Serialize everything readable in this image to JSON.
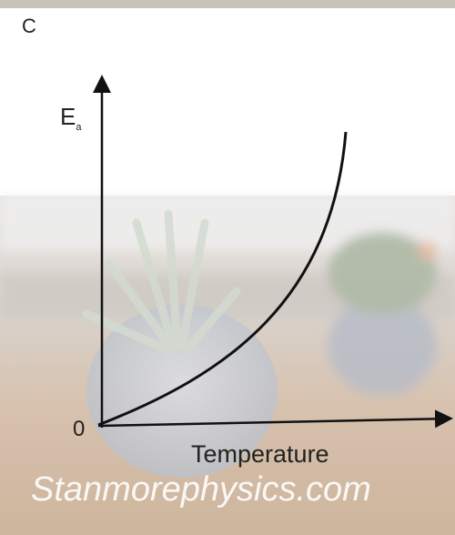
{
  "figure_label": "C",
  "y_axis": {
    "symbol": "E",
    "subscript": "a"
  },
  "origin_label": "0",
  "x_axis": {
    "label": "Temperature"
  },
  "watermark": "Stanmorephysics.com"
}
